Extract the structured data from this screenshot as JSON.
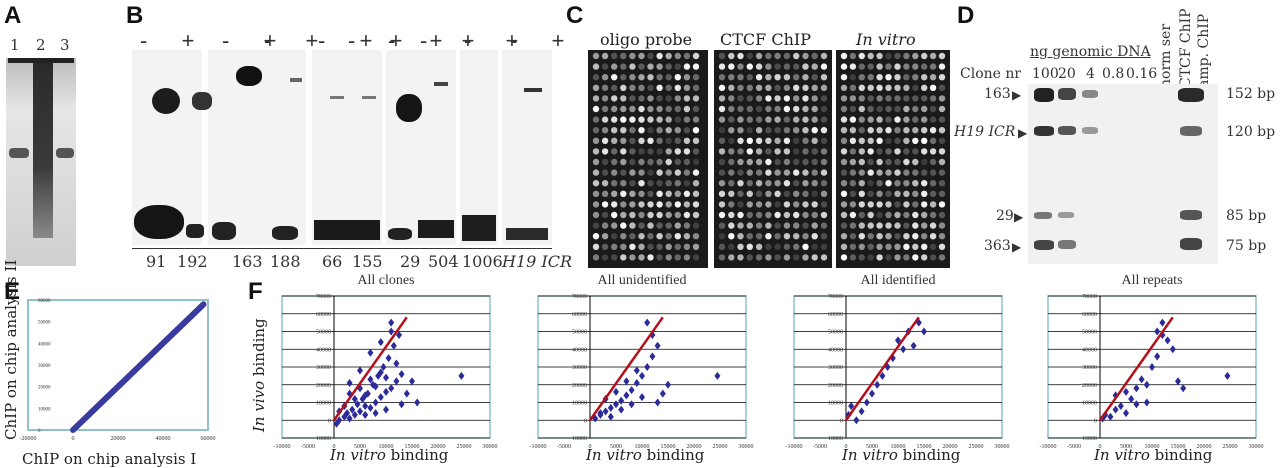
{
  "panels": {
    "A": "A",
    "B": "B",
    "C": "C",
    "D": "D",
    "E": "E",
    "F": "F"
  },
  "panel_a": {
    "lanes": [
      "1",
      "2",
      "3"
    ]
  },
  "panel_b": {
    "plus_minus": "-  +",
    "groups": [
      "91",
      "192",
      "163",
      "188",
      "66",
      "155",
      "29",
      "504",
      "1006",
      "H19 ICR"
    ]
  },
  "panel_c": {
    "headers": [
      "oligo probe",
      "CTCF ChIP",
      "In vitro"
    ]
  },
  "panel_d": {
    "ng_label": "ng genomic DNA",
    "clone_nr": "Clone nr",
    "concentrations": [
      "100",
      "20",
      "4",
      "0.8",
      "0.16"
    ],
    "col_labels": [
      "norm ser",
      "CTCF ChIP",
      "amp. ChIP"
    ],
    "left_labels": [
      "163",
      "H19 ICR",
      "29",
      "363"
    ],
    "right_labels": [
      "152 bp",
      "120 bp",
      "85 bp",
      "75 bp"
    ]
  },
  "panel_e": {
    "xlabel": "ChIP on chip analysis I",
    "ylabel": "ChIP on chip analysis II",
    "xticks": [
      "-20000",
      "0",
      "20000",
      "40000",
      "60000"
    ],
    "yticks": [
      "0",
      "10000",
      "20000",
      "30000",
      "40000",
      "50000",
      "60000"
    ]
  },
  "panel_f": {
    "ylabel_italic": "In vivo",
    "ylabel_rest": " binding",
    "xlabel_italic": "In vitro",
    "xlabel_rest": " binding",
    "titles": [
      "All clones",
      "All unidentified",
      "All identified",
      "All repeats"
    ]
  },
  "chart_data": [
    {
      "type": "line",
      "xlabel": "ChIP on chip analysis I",
      "ylabel": "ChIP on chip analysis II",
      "xlim": [
        -20000,
        60000
      ],
      "ylim": [
        0,
        60000
      ],
      "x": [
        0,
        10000,
        20000,
        30000,
        40000,
        50000,
        58000
      ],
      "y": [
        0,
        10000,
        20000,
        30000,
        40000,
        50000,
        58000
      ]
    },
    {
      "type": "scatter",
      "title": "All clones",
      "xlabel": "In vitro binding",
      "ylabel": "In vivo binding",
      "xlim": [
        -10000,
        30000
      ],
      "ylim": [
        -10000,
        70000
      ],
      "x": [
        1000,
        2000,
        2500,
        3000,
        3500,
        4000,
        4500,
        5000,
        5500,
        6000,
        6500,
        7000,
        7500,
        8000,
        8500,
        9000,
        9500,
        10000,
        10500,
        11000,
        11500,
        12000,
        12500,
        13000,
        14000,
        15000,
        16000,
        24500,
        3000,
        5000,
        7000,
        9000,
        11000,
        2000,
        4000,
        6000,
        8000,
        10000,
        12000,
        6000,
        8000,
        10000,
        13000,
        11000,
        9000,
        7000,
        5000,
        3000,
        1000,
        500
      ],
      "y": [
        0,
        2000,
        4000,
        1000,
        6000,
        3000,
        9000,
        5000,
        12000,
        8000,
        15000,
        7000,
        20000,
        10000,
        25000,
        13000,
        30000,
        16000,
        35000,
        18000,
        42000,
        22000,
        48000,
        26000,
        15000,
        22000,
        10000,
        25000,
        15000,
        18000,
        23000,
        27000,
        55000,
        8000,
        12000,
        14000,
        19000,
        24000,
        32000,
        3000,
        4000,
        6000,
        9000,
        50000,
        44000,
        38000,
        28000,
        21000,
        5000,
        -2000
      ]
    },
    {
      "type": "scatter",
      "title": "All unidentified",
      "xlabel": "In vitro binding",
      "ylabel": "In vivo binding",
      "xlim": [
        -10000,
        30000
      ],
      "ylim": [
        -10000,
        70000
      ],
      "x": [
        1000,
        2000,
        3000,
        4000,
        5000,
        6000,
        7000,
        8000,
        9000,
        10000,
        11000,
        12000,
        13000,
        14000,
        15000,
        24500,
        3000,
        5000,
        7000,
        9000,
        11000,
        12000,
        2000,
        6000,
        8000,
        10000,
        4000,
        13000
      ],
      "y": [
        1000,
        3000,
        5000,
        7000,
        9000,
        11000,
        14000,
        17000,
        21000,
        25000,
        30000,
        36000,
        42000,
        15000,
        20000,
        25000,
        12000,
        16000,
        22000,
        28000,
        55000,
        48000,
        4000,
        6000,
        9000,
        13000,
        2000,
        10000
      ]
    },
    {
      "type": "scatter",
      "title": "All identified",
      "xlabel": "In vitro binding",
      "ylabel": "In vivo binding",
      "xlim": [
        -10000,
        30000
      ],
      "ylim": [
        -10000,
        70000
      ],
      "x": [
        500,
        1000,
        2000,
        3000,
        4000,
        5000,
        6000,
        7000,
        8000,
        9000,
        10000,
        11000,
        12000,
        13000,
        14000,
        15000
      ],
      "y": [
        3000,
        8000,
        0,
        5000,
        10000,
        15000,
        20000,
        25000,
        30000,
        35000,
        45000,
        40000,
        50000,
        42000,
        55000,
        50000
      ]
    },
    {
      "type": "scatter",
      "title": "All repeats",
      "xlabel": "In vitro binding",
      "ylabel": "In vivo binding",
      "xlim": [
        -10000,
        30000
      ],
      "ylim": [
        -10000,
        70000
      ],
      "x": [
        500,
        1000,
        2000,
        3000,
        4000,
        5000,
        6000,
        7000,
        8000,
        9000,
        10000,
        11000,
        12000,
        13000,
        14000,
        15000,
        16000,
        24500,
        3000,
        5000,
        7000,
        9000,
        11000,
        12000
      ],
      "y": [
        1000,
        3000,
        2000,
        6000,
        8000,
        4000,
        12000,
        18000,
        23000,
        10000,
        30000,
        36000,
        55000,
        45000,
        40000,
        22000,
        18000,
        25000,
        14000,
        16000,
        9000,
        20000,
        50000,
        48000
      ]
    }
  ]
}
